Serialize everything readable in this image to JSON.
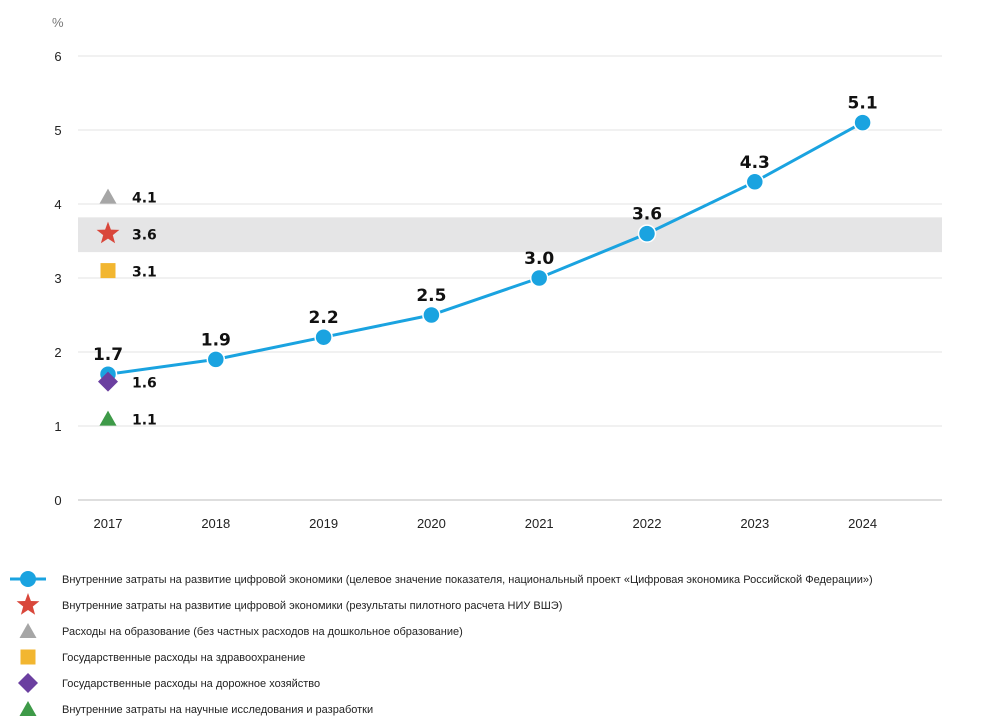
{
  "chart_data": {
    "type": "line",
    "ylabel": "%",
    "ylim": [
      0,
      6
    ],
    "yticks": [
      0,
      1,
      2,
      3,
      4,
      5,
      6
    ],
    "grid": true,
    "categories": [
      "2017",
      "2018",
      "2019",
      "2020",
      "2021",
      "2022",
      "2023",
      "2024"
    ],
    "series": [
      {
        "name": "Внутренние затраты на развитие цифровой экономики (целевое значение показателя, национальный проект «Цифровая экономика Российской Федерации»)",
        "values": [
          1.7,
          1.9,
          2.2,
          2.5,
          3.0,
          3.6,
          4.3,
          5.1
        ],
        "labels": [
          "1.7",
          "1.9",
          "2.2",
          "2.5",
          "3.0",
          "3.6",
          "4.3",
          "5.1"
        ],
        "color": "#1aa3e0",
        "marker": "circle"
      }
    ],
    "benchmarks": [
      {
        "name": "Внутренние затраты на развитие цифровой экономики (результаты пилотного расчета НИУ ВШЭ)",
        "x": "2017",
        "value": 3.6,
        "label": "3.6",
        "color": "#d9473b",
        "marker": "star"
      },
      {
        "name": "Расходы на образование (без частных расходов на дошкольное образование)",
        "x": "2017",
        "value": 4.1,
        "label": "4.1",
        "color": "#a6a6a6",
        "marker": "triangle"
      },
      {
        "name": "Государственные расходы на здравоохранение",
        "x": "2017",
        "value": 3.1,
        "label": "3.1",
        "color": "#f2b630",
        "marker": "square"
      },
      {
        "name": "Государственные расходы на дорожное хозяйство",
        "x": "2017",
        "value": 1.6,
        "label": "1.6",
        "color": "#6b3fa0",
        "marker": "diamond"
      },
      {
        "name": "Внутренние затраты на научные исследования и разработки",
        "x": "2017",
        "value": 1.1,
        "label": "1.1",
        "color": "#3e9a48",
        "marker": "triangle"
      }
    ],
    "band": {
      "from": 3.35,
      "to": 3.82,
      "color": "#e5e5e6"
    },
    "legend_position": "bottom"
  }
}
